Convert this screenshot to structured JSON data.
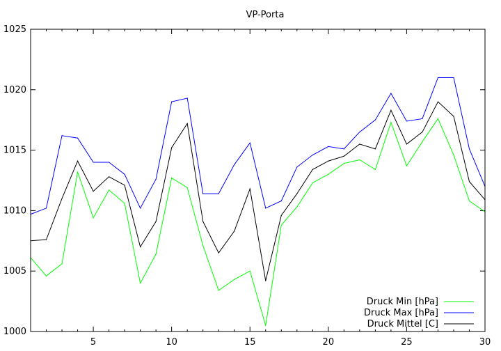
{
  "chart_data": {
    "type": "line",
    "title": "VP-Porta",
    "xlabel": "",
    "ylabel": "",
    "xlim": [
      1,
      30
    ],
    "ylim": [
      1000,
      1025
    ],
    "x_ticks": [
      5,
      10,
      15,
      20,
      25,
      30
    ],
    "y_ticks": [
      1000,
      1005,
      1010,
      1015,
      1020,
      1025
    ],
    "grid": false,
    "legend_position": "bottom-right",
    "x": [
      1,
      2,
      3,
      4,
      5,
      6,
      7,
      8,
      9,
      10,
      11,
      12,
      13,
      14,
      15,
      16,
      17,
      18,
      19,
      20,
      21,
      22,
      23,
      24,
      25,
      26,
      27,
      28,
      29,
      30
    ],
    "series": [
      {
        "name": "Druck Min [hPa]",
        "color": "#00ff00",
        "values": [
          1006.1,
          1004.6,
          1005.6,
          1013.2,
          1009.4,
          1011.7,
          1010.6,
          1004.0,
          1006.4,
          1012.7,
          1011.9,
          1007.1,
          1003.4,
          1004.3,
          1005.0,
          1000.5,
          1008.8,
          1010.3,
          1012.3,
          1013.0,
          1013.9,
          1014.2,
          1013.4,
          1017.3,
          1013.7,
          1015.7,
          1017.6,
          1014.6,
          1010.8,
          1009.9
        ]
      },
      {
        "name": "Druck Max [hPa]",
        "color": "#0000ff",
        "values": [
          1009.7,
          1010.2,
          1016.2,
          1016.0,
          1014.0,
          1014.0,
          1013.0,
          1010.2,
          1012.6,
          1019.0,
          1019.3,
          1011.4,
          1011.4,
          1013.8,
          1015.6,
          1010.2,
          1010.8,
          1013.6,
          1014.6,
          1015.3,
          1015.1,
          1016.5,
          1017.5,
          1019.7,
          1017.4,
          1017.6,
          1021.0,
          1021.0,
          1015.1,
          1012.0
        ]
      },
      {
        "name": "Druck Mittel [C]",
        "color": "#000000",
        "values": [
          1007.5,
          1007.6,
          1011.0,
          1014.1,
          1011.6,
          1012.8,
          1012.1,
          1007.0,
          1009.1,
          1015.2,
          1017.2,
          1009.1,
          1006.5,
          1008.3,
          1011.8,
          1004.2,
          1009.6,
          1011.4,
          1013.4,
          1014.1,
          1014.5,
          1015.5,
          1015.1,
          1018.3,
          1015.5,
          1016.5,
          1019.0,
          1017.8,
          1012.4,
          1010.9
        ]
      }
    ]
  }
}
